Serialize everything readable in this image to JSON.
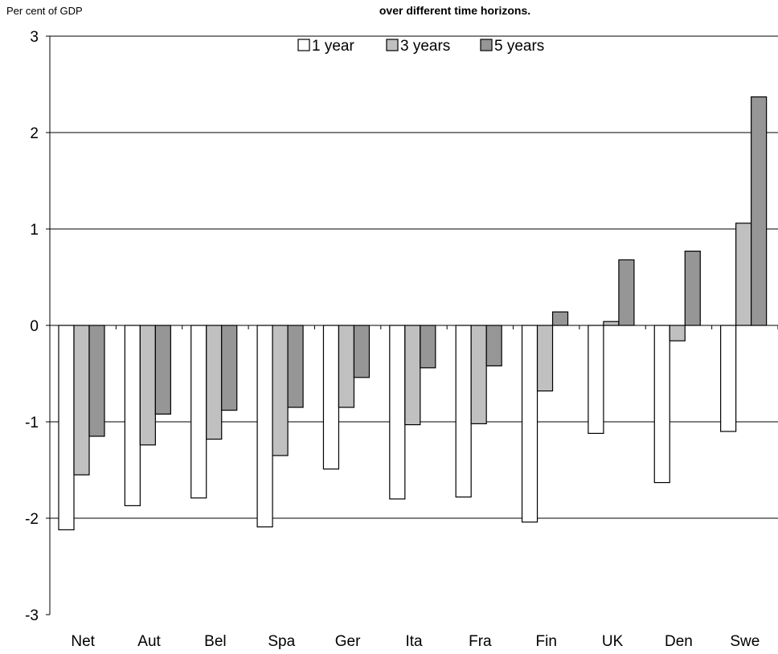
{
  "chart_data": {
    "type": "bar",
    "title": "over different time horizons.",
    "ylabel": "Per cent of GDP",
    "xlabel": "",
    "ylim": [
      -3,
      3
    ],
    "yticks": [
      3,
      2,
      1,
      0,
      -1,
      -2,
      -3
    ],
    "ytick_labels": [
      "3",
      "2",
      "1",
      "0",
      "-1",
      "-2",
      "-3"
    ],
    "grid": true,
    "legend": "top-center",
    "categories": [
      "Net",
      "Aut",
      "Bel",
      "Spa",
      "Ger",
      "Ita",
      "Fra",
      "Fin",
      "UK",
      "Den",
      "Swe"
    ],
    "series": [
      {
        "name": "1 year",
        "color": "#ffffff",
        "values": [
          -2.12,
          -1.87,
          -1.79,
          -2.09,
          -1.49,
          -1.8,
          -1.78,
          -2.04,
          -1.12,
          -1.63,
          -1.1
        ]
      },
      {
        "name": "3 years",
        "color": "#c0c0c0",
        "values": [
          -1.55,
          -1.24,
          -1.18,
          -1.35,
          -0.85,
          -1.03,
          -1.02,
          -0.68,
          0.04,
          -0.16,
          1.06
        ]
      },
      {
        "name": "5 years",
        "color": "#969696",
        "values": [
          -1.15,
          -0.92,
          -0.88,
          -0.85,
          -0.54,
          -0.44,
          -0.42,
          0.14,
          0.68,
          0.77,
          2.37
        ]
      }
    ]
  }
}
